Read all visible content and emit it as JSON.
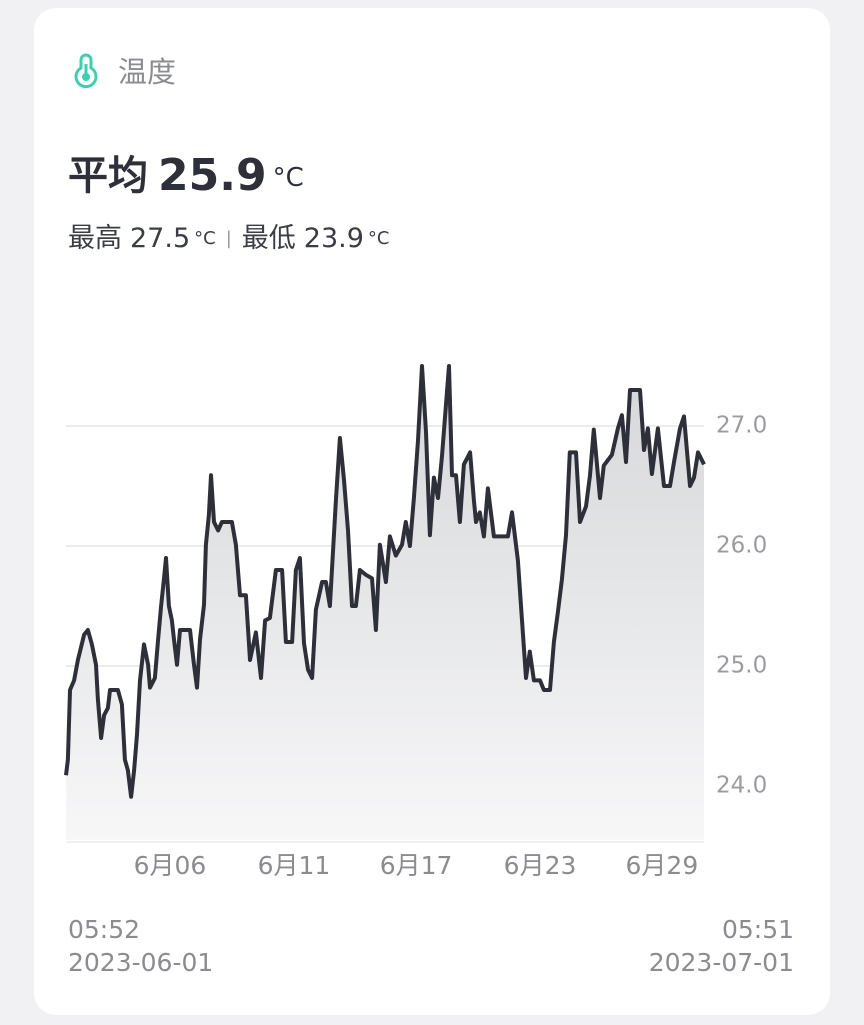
{
  "header": {
    "title": "温度"
  },
  "summary": {
    "avg_label": "平均",
    "avg": 25.9,
    "unit": "°C",
    "max_label": "最高",
    "max": 27.5,
    "min_label": "最低",
    "min": 23.9
  },
  "chart_data": {
    "type": "line",
    "x": [
      0,
      0.09,
      0.19,
      0.38,
      0.56,
      0.85,
      1.03,
      1.22,
      1.41,
      1.5,
      1.65,
      1.79,
      1.97,
      2.07,
      2.44,
      2.63,
      2.77,
      2.91,
      3.06,
      3.2,
      3.34,
      3.48,
      3.67,
      3.86,
      3.95,
      4.18,
      4.33,
      4.47,
      4.61,
      4.7,
      4.84,
      4.98,
      5.08,
      5.22,
      5.36,
      5.83,
      6.02,
      6.16,
      6.3,
      6.49,
      6.58,
      6.72,
      6.82,
      6.96,
      7.15,
      7.33,
      7.8,
      7.99,
      8.18,
      8.46,
      8.65,
      8.93,
      9.17,
      9.36,
      9.59,
      9.87,
      10.16,
      10.34,
      10.63,
      10.81,
      11.0,
      11.19,
      11.38,
      11.57,
      11.75,
      12.04,
      12.22,
      12.41,
      12.69,
      12.88,
      13.07,
      13.26,
      13.45,
      13.63,
      13.82,
      14.1,
      14.39,
      14.57,
      14.76,
      15.04,
      15.23,
      15.51,
      15.8,
      15.98,
      16.17,
      16.36,
      16.55,
      16.74,
      16.93,
      17.11,
      17.3,
      17.49,
      17.68,
      17.87,
      18.01,
      18.15,
      18.34,
      18.52,
      18.71,
      19.0,
      19.18,
      19.28,
      19.46,
      19.65,
      19.84,
      20.12,
      20.78,
      20.97,
      21.25,
      21.44,
      21.63,
      21.81,
      22.0,
      22.29,
      22.47,
      22.76,
      22.94,
      23.13,
      23.32,
      23.51,
      23.69,
      23.98,
      24.17,
      24.45,
      24.64,
      24.82,
      25.11,
      25.29,
      25.67,
      25.95,
      26.14,
      26.33,
      26.52,
      26.99,
      27.18,
      27.36,
      27.55,
      27.83,
      28.12,
      28.4,
      28.59,
      28.87,
      29.06,
      29.34,
      29.53,
      29.72,
      30
    ],
    "series": [
      {
        "color": "#2d3039",
        "values": [
          24.09,
          24.22,
          24.8,
          24.88,
          25.05,
          25.26,
          25.3,
          25.18,
          25.01,
          24.72,
          24.4,
          24.59,
          24.65,
          24.8,
          24.8,
          24.68,
          24.22,
          24.13,
          23.91,
          24.13,
          24.43,
          24.88,
          25.18,
          25.01,
          24.82,
          24.9,
          25.22,
          25.5,
          25.73,
          25.9,
          25.5,
          25.38,
          25.22,
          25.01,
          25.3,
          25.3,
          25.01,
          24.82,
          25.22,
          25.51,
          26.01,
          26.26,
          26.59,
          26.2,
          26.13,
          26.2,
          26.2,
          26.01,
          25.59,
          25.59,
          25.05,
          25.28,
          24.9,
          25.38,
          25.4,
          25.8,
          25.8,
          25.2,
          25.2,
          25.8,
          25.9,
          25.19,
          24.97,
          24.9,
          25.47,
          25.7,
          25.7,
          25.5,
          26.38,
          26.9,
          26.55,
          26.13,
          25.5,
          25.5,
          25.8,
          25.76,
          25.73,
          25.3,
          26.01,
          25.7,
          26.08,
          25.92,
          26.01,
          26.2,
          26.0,
          26.4,
          26.88,
          27.5,
          26.95,
          26.09,
          26.57,
          26.4,
          26.75,
          27.18,
          27.5,
          26.59,
          26.59,
          26.2,
          26.68,
          26.78,
          26.38,
          26.2,
          26.28,
          26.08,
          26.48,
          26.08,
          26.08,
          26.28,
          25.88,
          25.38,
          24.9,
          25.12,
          24.88,
          24.88,
          24.8,
          24.8,
          25.2,
          25.45,
          25.72,
          26.09,
          26.78,
          26.78,
          26.2,
          26.33,
          26.59,
          26.97,
          26.4,
          26.67,
          26.76,
          26.98,
          27.09,
          26.7,
          27.3,
          27.3,
          26.8,
          26.98,
          26.6,
          26.98,
          26.5,
          26.5,
          26.7,
          26.98,
          27.08,
          26.5,
          26.57,
          26.78,
          26.68
        ]
      }
    ],
    "xlim": [
      0,
      30
    ],
    "xticks": [
      {
        "value": 4.89,
        "label": "6月06"
      },
      {
        "value": 10.72,
        "label": "6月11"
      },
      {
        "value": 16.46,
        "label": "6月17"
      },
      {
        "value": 22.29,
        "label": "6月23"
      },
      {
        "value": 28.02,
        "label": "6月29"
      }
    ],
    "ylim": [
      23.55,
      27.75
    ],
    "yticks": [
      {
        "value": 24,
        "label": "24.0"
      },
      {
        "value": 25,
        "label": "25.0"
      },
      {
        "value": 26,
        "label": "26.0"
      },
      {
        "value": 27,
        "label": "27.0"
      }
    ],
    "grid": true
  },
  "range": {
    "start_time": "05:52",
    "start_date": "2023-06-01",
    "end_time": "05:51",
    "end_date": "2023-07-01"
  }
}
